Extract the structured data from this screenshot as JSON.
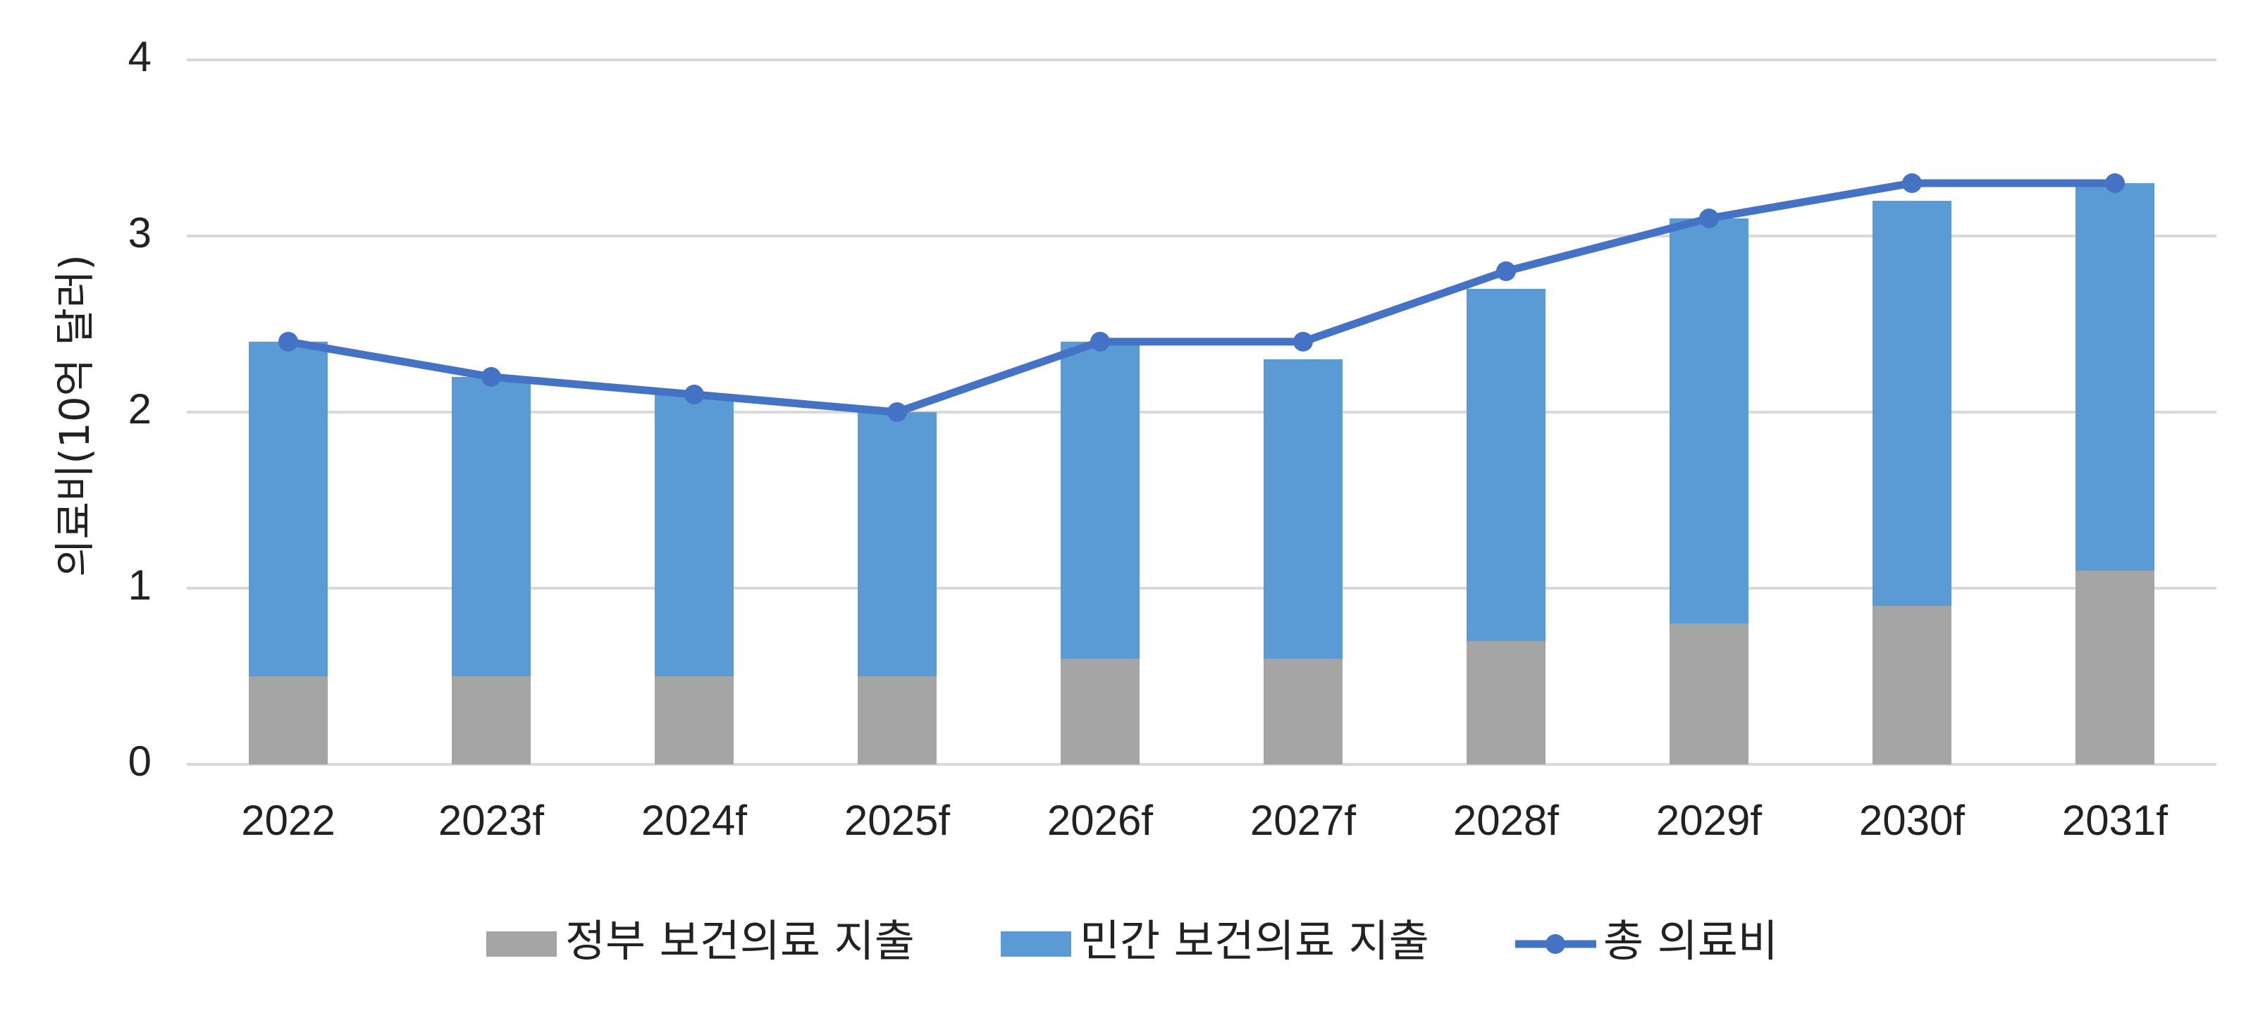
{
  "chart_data": {
    "type": "bar",
    "stacked": true,
    "ylabel": "의료비(10억 달러)",
    "ylim": [
      0,
      4
    ],
    "yticks": [
      0,
      1,
      2,
      3,
      4
    ],
    "grid": true,
    "legend_position": "bottom",
    "categories": [
      "2022",
      "2023f",
      "2024f",
      "2025f",
      "2026f",
      "2027f",
      "2028f",
      "2029f",
      "2030f",
      "2031f"
    ],
    "series": [
      {
        "name": "정부 보건의료 지출",
        "kind": "bar",
        "color": "#a5a5a5",
        "values": [
          0.5,
          0.5,
          0.5,
          0.5,
          0.6,
          0.6,
          0.7,
          0.8,
          0.9,
          1.1
        ]
      },
      {
        "name": "민간 보건의료 지출",
        "kind": "bar",
        "color": "#5b9bd5",
        "values": [
          1.9,
          1.7,
          1.6,
          1.5,
          1.8,
          1.7,
          2.0,
          2.3,
          2.3,
          2.2
        ]
      },
      {
        "name": "총 의료비",
        "kind": "line",
        "color": "#4472c4",
        "values": [
          2.4,
          2.2,
          2.1,
          2.0,
          2.4,
          2.4,
          2.8,
          3.1,
          3.3,
          3.3
        ]
      }
    ]
  }
}
